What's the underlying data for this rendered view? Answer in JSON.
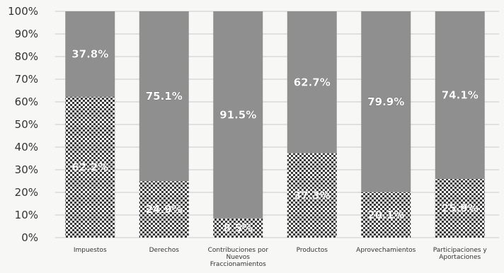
{
  "chart_data": {
    "type": "bar",
    "stacked": true,
    "categories": [
      "Impuestos",
      "Derechos",
      "Contribuciones por Nuevos Fraccionamientos",
      "Productos",
      "Aprovechamientos",
      "Participaciones y Aportaciones"
    ],
    "y_ticks": [
      "0%",
      "10%",
      "20%",
      "30%",
      "40%",
      "50%",
      "60%",
      "70%",
      "80%",
      "90%",
      "100%"
    ],
    "ylim": [
      0,
      100
    ],
    "grid": true,
    "legend": "none",
    "series": [
      {
        "values": [
          62.2,
          24.9,
          8.5,
          37.3,
          20.1,
          25.9
        ],
        "labels": [
          "62.2%",
          "24.9%",
          "8.5%",
          "37.3%",
          "20.1%",
          "25.9%"
        ],
        "pattern": "checkered",
        "color": "#3a3a3a"
      },
      {
        "values": [
          37.8,
          75.1,
          91.5,
          62.7,
          79.9,
          74.1
        ],
        "labels": [
          "37.8%",
          "75.1%",
          "91.5%",
          "62.7%",
          "79.9%",
          "74.1%"
        ],
        "pattern": "solid",
        "color": "#8f8f8f"
      }
    ]
  }
}
